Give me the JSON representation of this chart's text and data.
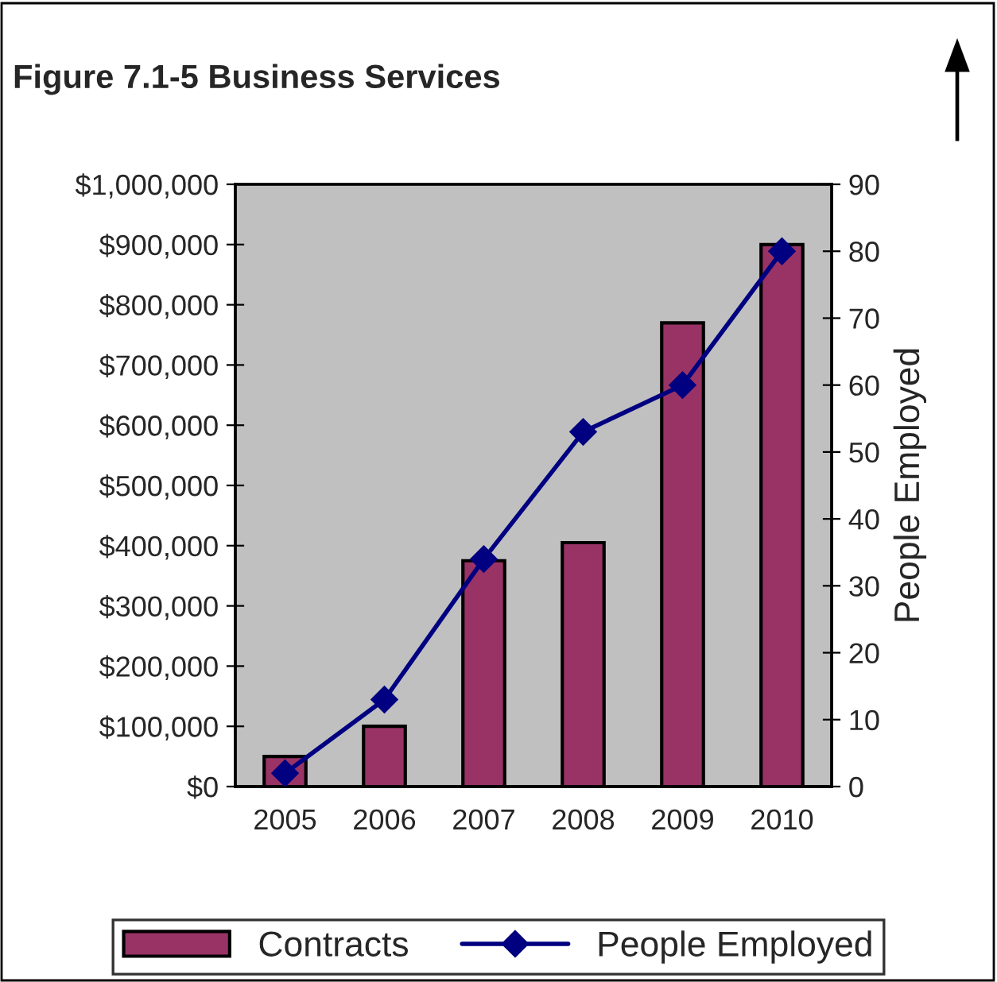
{
  "chart_data": {
    "type": "bar",
    "title": "Figure 7.1-5 Business Services",
    "y2label": "People Employed",
    "categories": [
      "2005",
      "2006",
      "2007",
      "2008",
      "2009",
      "2010"
    ],
    "series": [
      {
        "name": "Contracts",
        "color": "#993366",
        "values": [
          50000,
          100000,
          375000,
          405000,
          770000,
          900000
        ]
      },
      {
        "name": "People Employed",
        "type": "line",
        "axis": "y2",
        "color": "#000080",
        "marker": "diamond",
        "values": [
          2,
          13,
          34,
          53,
          60,
          80
        ]
      }
    ],
    "ylim": [
      0,
      1000000
    ],
    "yticks": [
      {
        "value": 0,
        "label": "$0"
      },
      {
        "value": 100000,
        "label": "$100,000"
      },
      {
        "value": 200000,
        "label": "$200,000"
      },
      {
        "value": 300000,
        "label": "$300,000"
      },
      {
        "value": 400000,
        "label": "$400,000"
      },
      {
        "value": 500000,
        "label": "$500,000"
      },
      {
        "value": 600000,
        "label": "$600,000"
      },
      {
        "value": 700000,
        "label": "$700,000"
      },
      {
        "value": 800000,
        "label": "$800,000"
      },
      {
        "value": 900000,
        "label": "$900,000"
      },
      {
        "value": 1000000,
        "label": "$1,000,000"
      }
    ],
    "y2lim": [
      0,
      90
    ],
    "y2ticks": [
      0,
      10,
      20,
      30,
      40,
      50,
      60,
      70,
      80,
      90
    ],
    "grid": false,
    "legend": "bottom"
  }
}
